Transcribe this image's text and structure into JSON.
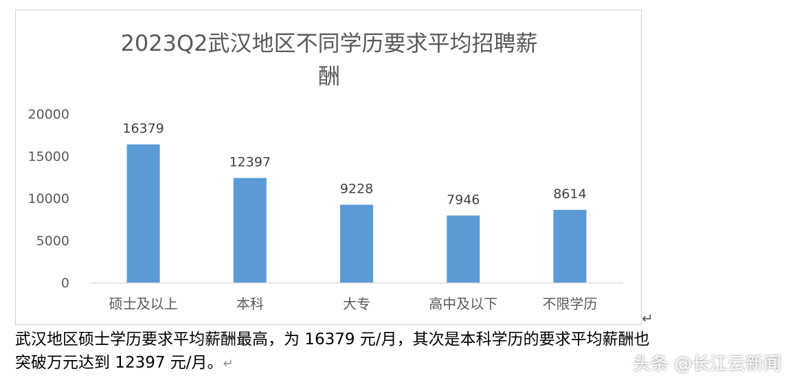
{
  "chart_data": {
    "type": "bar",
    "title": "2023Q2武汉地区不同学历要求平均招聘薪酬",
    "categories": [
      "硕士及以上",
      "本科",
      "大专",
      "高中及以下",
      "不限学历"
    ],
    "values": [
      16379,
      12397,
      9228,
      7946,
      8614
    ],
    "ylim": [
      0,
      20000
    ],
    "yticks": [
      0,
      5000,
      10000,
      15000,
      20000
    ],
    "bar_color": "#5b9bd5",
    "grid": false,
    "legend": "none"
  },
  "chart_title_lines": [
    "2023Q2武汉地区不同学历要求平均招聘薪",
    "酬"
  ],
  "paragraph": {
    "line1": "武汉地区硕士学历要求平均薪酬最高，为 16379 元/月，其次是本科学历的要求平均薪酬也",
    "line2": "突破万元达到 12397 元/月。",
    "mark": "↵"
  },
  "frame_mark": "↵",
  "watermark": "头条 @长江云新闻"
}
